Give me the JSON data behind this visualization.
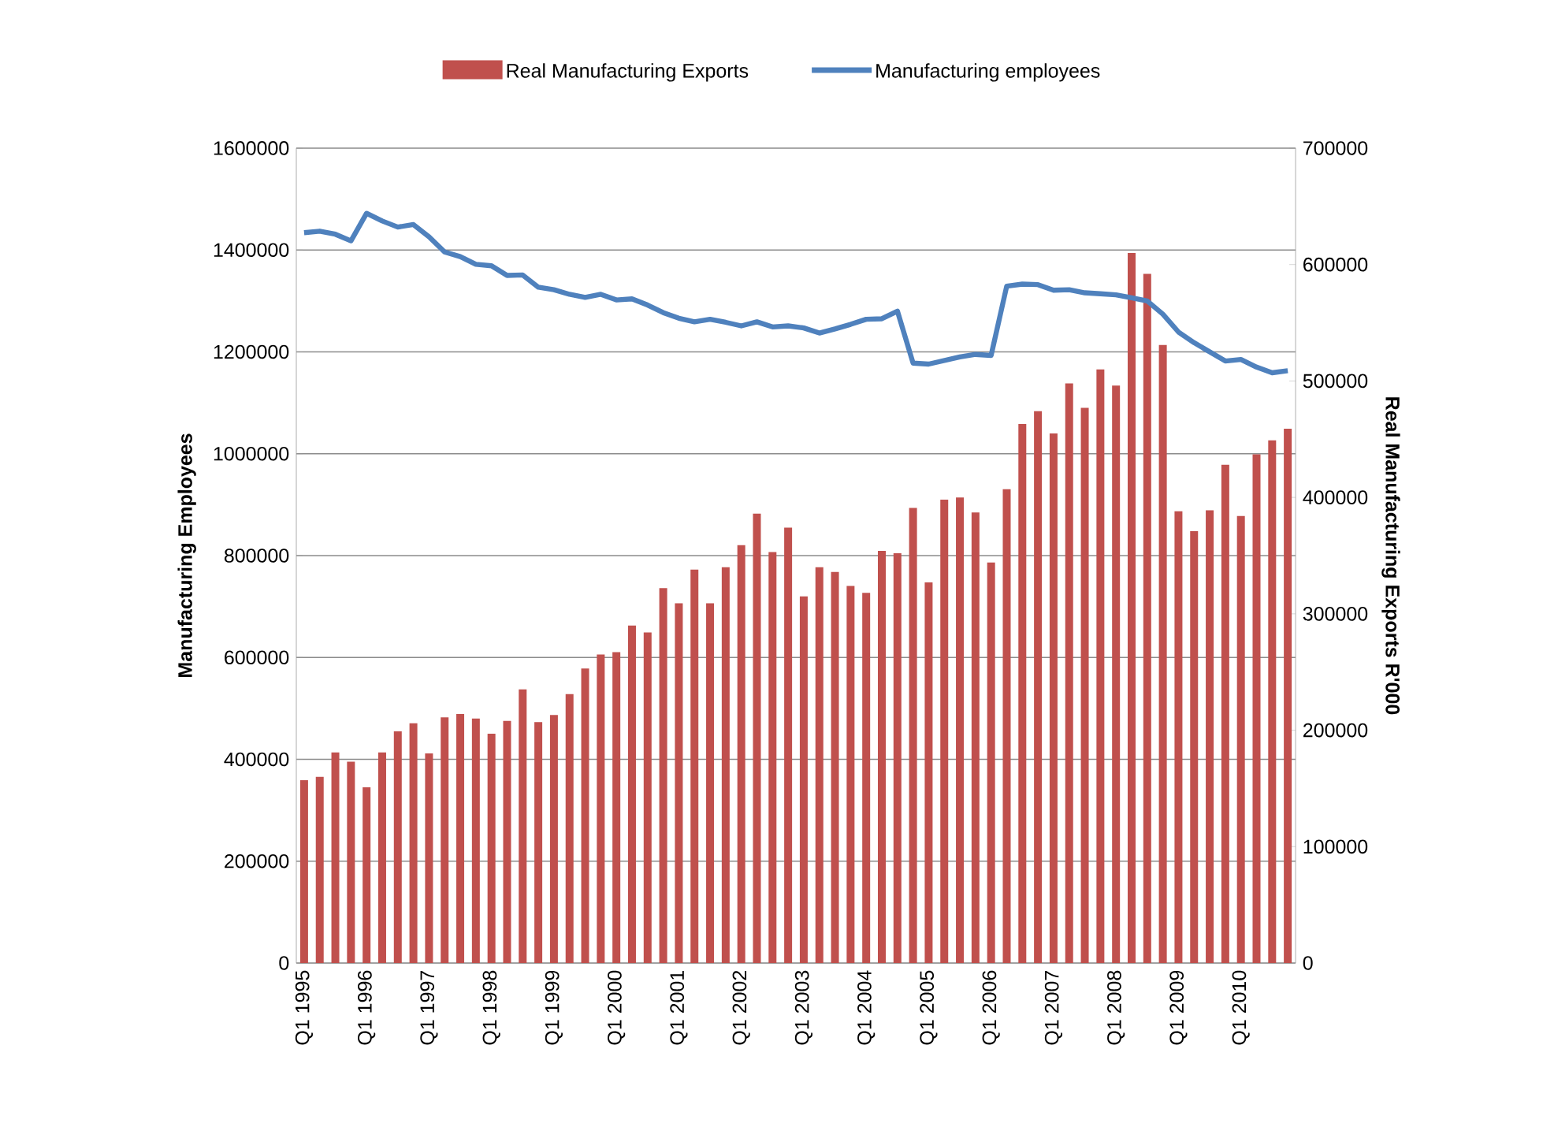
{
  "chart_data": {
    "type": "bar",
    "xlabel": null,
    "ylabel": "Manufacturing Employees",
    "y2label": "Real Manufacturing Exports R'000",
    "categories": [
      "Q1 1995",
      null,
      null,
      null,
      "Q1 1996",
      null,
      null,
      null,
      "Q1 1997",
      null,
      null,
      null,
      "Q1 1998",
      null,
      null,
      null,
      "Q1 1999",
      null,
      null,
      null,
      "Q1 2000",
      null,
      null,
      null,
      "Q1 2001",
      null,
      null,
      null,
      "Q1 2002",
      null,
      null,
      null,
      "Q1 2003",
      null,
      null,
      null,
      "Q1 2004",
      null,
      null,
      null,
      "Q1 2005",
      null,
      null,
      null,
      "Q1 2006",
      null,
      null,
      null,
      "Q1 2007",
      null,
      null,
      null,
      "Q1 2008",
      null,
      null,
      null,
      "Q1 2009",
      null,
      null,
      null,
      "Q1 2010",
      null,
      null,
      null
    ],
    "series": [
      {
        "name": "Real Manufacturing Exports",
        "axis": "y2",
        "color": "#c0504d",
        "values": [
          157000,
          160000,
          181000,
          173000,
          151000,
          181000,
          199000,
          206000,
          180000,
          211000,
          214000,
          210000,
          197000,
          208000,
          235000,
          207000,
          213000,
          231000,
          253000,
          265000,
          267000,
          290000,
          284000,
          322000,
          309000,
          338000,
          309000,
          340000,
          359000,
          386000,
          353000,
          374000,
          315000,
          340000,
          336000,
          324000,
          318000,
          354000,
          352000,
          391000,
          327000,
          398000,
          400000,
          387000,
          344000,
          407000,
          463000,
          474000,
          455000,
          498000,
          477000,
          510000,
          496000,
          610000,
          592000,
          531000,
          388000,
          371000,
          389000,
          428000,
          384000,
          437000,
          449000,
          459000
        ]
      },
      {
        "name": "Manufacturing employees",
        "type": "line",
        "color": "#4f81bd",
        "values": [
          1434000,
          1437000,
          1431000,
          1418000,
          1472000,
          1457000,
          1445000,
          1450000,
          1426000,
          1396000,
          1387000,
          1372000,
          1369000,
          1350000,
          1351000,
          1327000,
          1322000,
          1313000,
          1307000,
          1313000,
          1302000,
          1304000,
          1292000,
          1277000,
          1266000,
          1259000,
          1264000,
          1258000,
          1251000,
          1259000,
          1249000,
          1251000,
          1247000,
          1237000,
          1245000,
          1254000,
          1264000,
          1265000,
          1280000,
          1178000,
          1176000,
          1183000,
          1190000,
          1195000,
          1193000,
          1329000,
          1333000,
          1332000,
          1321000,
          1322000,
          1316000,
          1314000,
          1312000,
          1306000,
          1300000,
          1274000,
          1239000,
          1218000,
          1200000,
          1182000,
          1185000,
          1170000,
          1159000,
          1163000
        ]
      }
    ],
    "ylim": [
      0,
      1600000
    ],
    "yticks": [
      0,
      200000,
      400000,
      600000,
      800000,
      1000000,
      1200000,
      1400000,
      1600000
    ],
    "y2lim": [
      0,
      700000
    ],
    "y2ticks": [
      0,
      100000,
      200000,
      300000,
      400000,
      500000,
      600000,
      700000
    ],
    "grid": "y",
    "legend": "top"
  }
}
